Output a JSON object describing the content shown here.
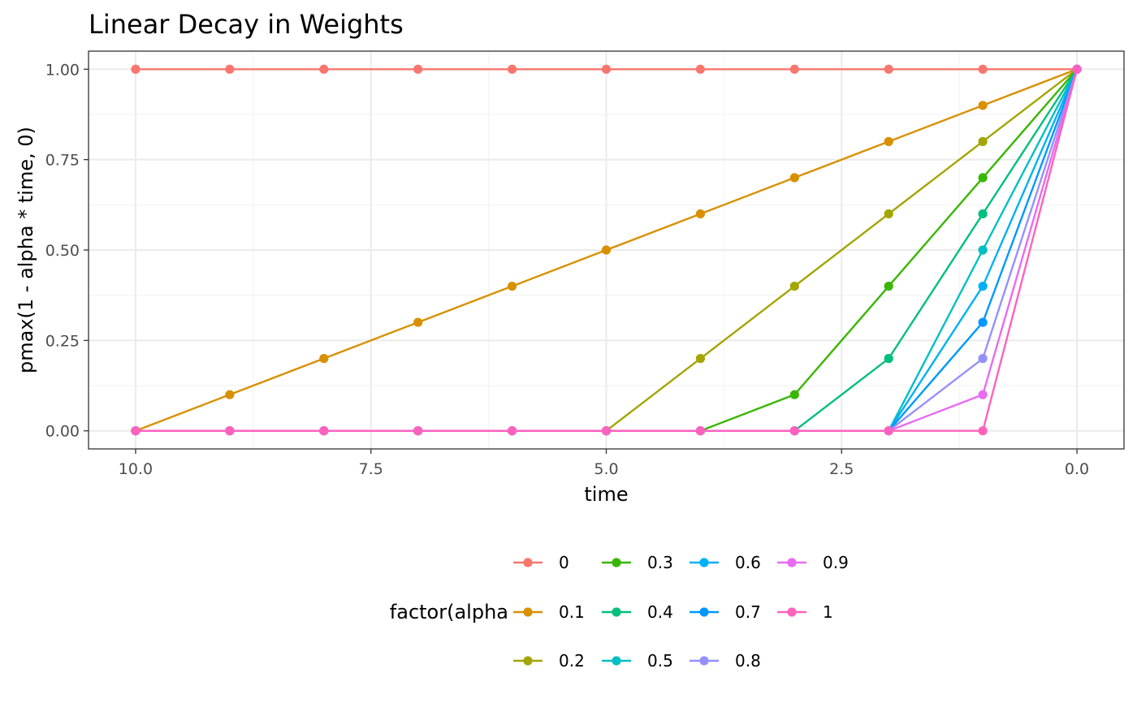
{
  "chart_data": {
    "type": "line",
    "title": "Linear Decay in Weights",
    "xlabel": "time",
    "ylabel": "pmax(1 - alpha * time, 0)",
    "x_reversed": true,
    "xlim": [
      10,
      0
    ],
    "ylim": [
      0,
      1
    ],
    "x_ticks": [
      10,
      7.5,
      5,
      2.5,
      0
    ],
    "x_tick_labels": [
      "10.0",
      "7.5",
      "5.0",
      "2.5",
      "0.0"
    ],
    "y_ticks": [
      0,
      0.25,
      0.5,
      0.75,
      1
    ],
    "y_tick_labels": [
      "0.00",
      "0.25",
      "0.50",
      "0.75",
      "1.00"
    ],
    "grid": true,
    "legend_title": "factor(alpha",
    "legend_position": "bottom",
    "x": [
      10,
      9,
      8,
      7,
      6,
      5,
      4,
      3,
      2,
      1,
      0
    ],
    "series": [
      {
        "name": "0",
        "color": "#F8766D",
        "values": [
          1,
          1,
          1,
          1,
          1,
          1,
          1,
          1,
          1,
          1,
          1
        ]
      },
      {
        "name": "0.1",
        "color": "#D89000",
        "values": [
          0,
          0.1,
          0.2,
          0.3,
          0.4,
          0.5,
          0.6,
          0.7,
          0.8,
          0.9,
          1
        ]
      },
      {
        "name": "0.2",
        "color": "#A3A500",
        "values": [
          0,
          0,
          0,
          0,
          0,
          0,
          0.2,
          0.4,
          0.6,
          0.8,
          1
        ]
      },
      {
        "name": "0.3",
        "color": "#39B600",
        "values": [
          0,
          0,
          0,
          0,
          0,
          0,
          0,
          0.1,
          0.4,
          0.7,
          1
        ]
      },
      {
        "name": "0.4",
        "color": "#00BF7D",
        "values": [
          0,
          0,
          0,
          0,
          0,
          0,
          0,
          0,
          0.2,
          0.6,
          1
        ]
      },
      {
        "name": "0.5",
        "color": "#00BFC4",
        "values": [
          0,
          0,
          0,
          0,
          0,
          0,
          0,
          0,
          0,
          0.5,
          1
        ]
      },
      {
        "name": "0.6",
        "color": "#00B0F6",
        "values": [
          0,
          0,
          0,
          0,
          0,
          0,
          0,
          0,
          0,
          0.4,
          1
        ]
      },
      {
        "name": "0.7",
        "color": "#0098FF",
        "values": [
          0,
          0,
          0,
          0,
          0,
          0,
          0,
          0,
          0,
          0.3,
          1
        ]
      },
      {
        "name": "0.8",
        "color": "#9590FF",
        "values": [
          0,
          0,
          0,
          0,
          0,
          0,
          0,
          0,
          0,
          0.2,
          1
        ]
      },
      {
        "name": "0.9",
        "color": "#E76BF3",
        "values": [
          0,
          0,
          0,
          0,
          0,
          0,
          0,
          0,
          0,
          0.1,
          1
        ]
      },
      {
        "name": "1",
        "color": "#FF62BC",
        "values": [
          0,
          0,
          0,
          0,
          0,
          0,
          0,
          0,
          0,
          0,
          1
        ]
      }
    ]
  }
}
